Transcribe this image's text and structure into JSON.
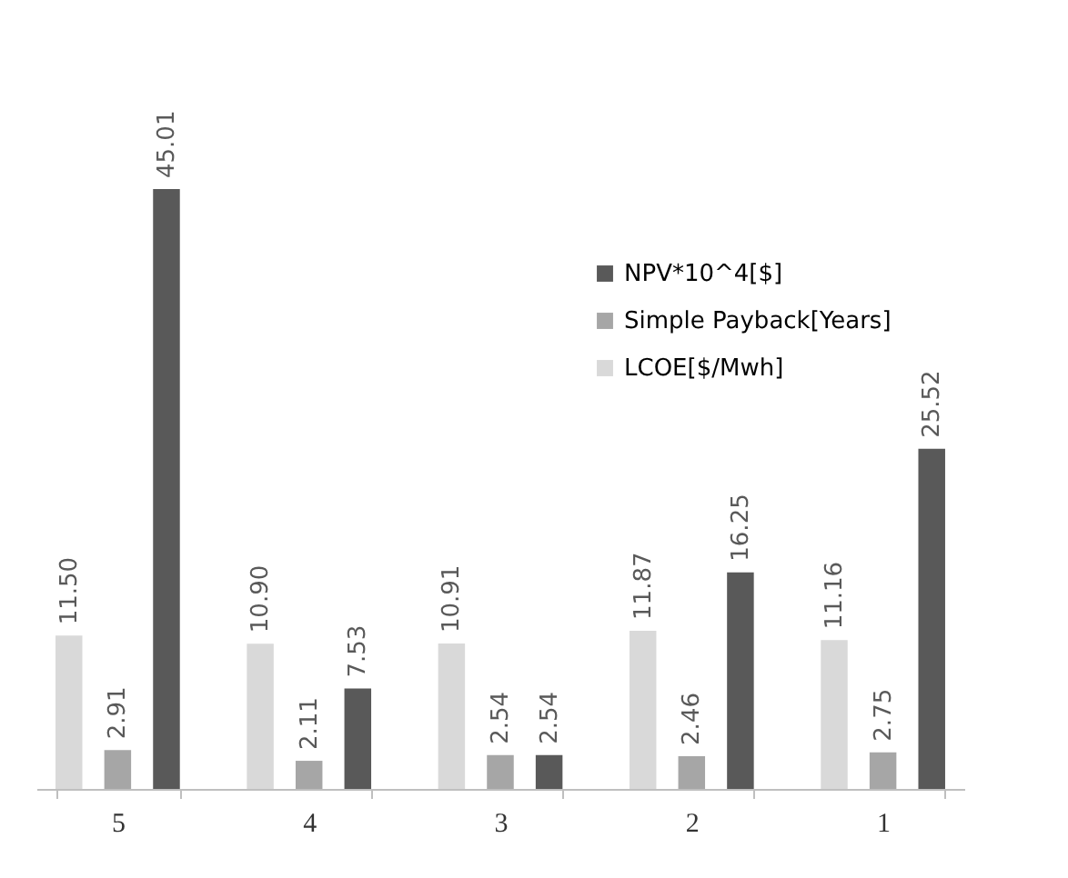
{
  "chart_data": {
    "type": "bar",
    "categories": [
      "5",
      "4",
      "3",
      "2",
      "1"
    ],
    "series": [
      {
        "name": "LCOE[$/Mwh]",
        "color": "#d9d9d9",
        "values": [
          11.5,
          10.9,
          10.91,
          11.87,
          11.16
        ],
        "value_labels": [
          "11.50",
          "10.90",
          "10.91",
          "11.87",
          "11.16"
        ]
      },
      {
        "name": "Simple Payback[Years]",
        "color": "#a6a6a6",
        "values": [
          2.91,
          2.11,
          2.54,
          2.46,
          2.75
        ],
        "value_labels": [
          "2.91",
          "2.11",
          "2.54",
          "2.46",
          "2.75"
        ]
      },
      {
        "name": "NPV*10^4[$]",
        "color": "#595959",
        "values": [
          45.01,
          7.53,
          2.54,
          16.25,
          25.52
        ],
        "value_labels": [
          "45.01",
          "7.53",
          "2.54",
          "16.25",
          "25.52"
        ]
      }
    ],
    "legend": "top right",
    "grid": false
  }
}
